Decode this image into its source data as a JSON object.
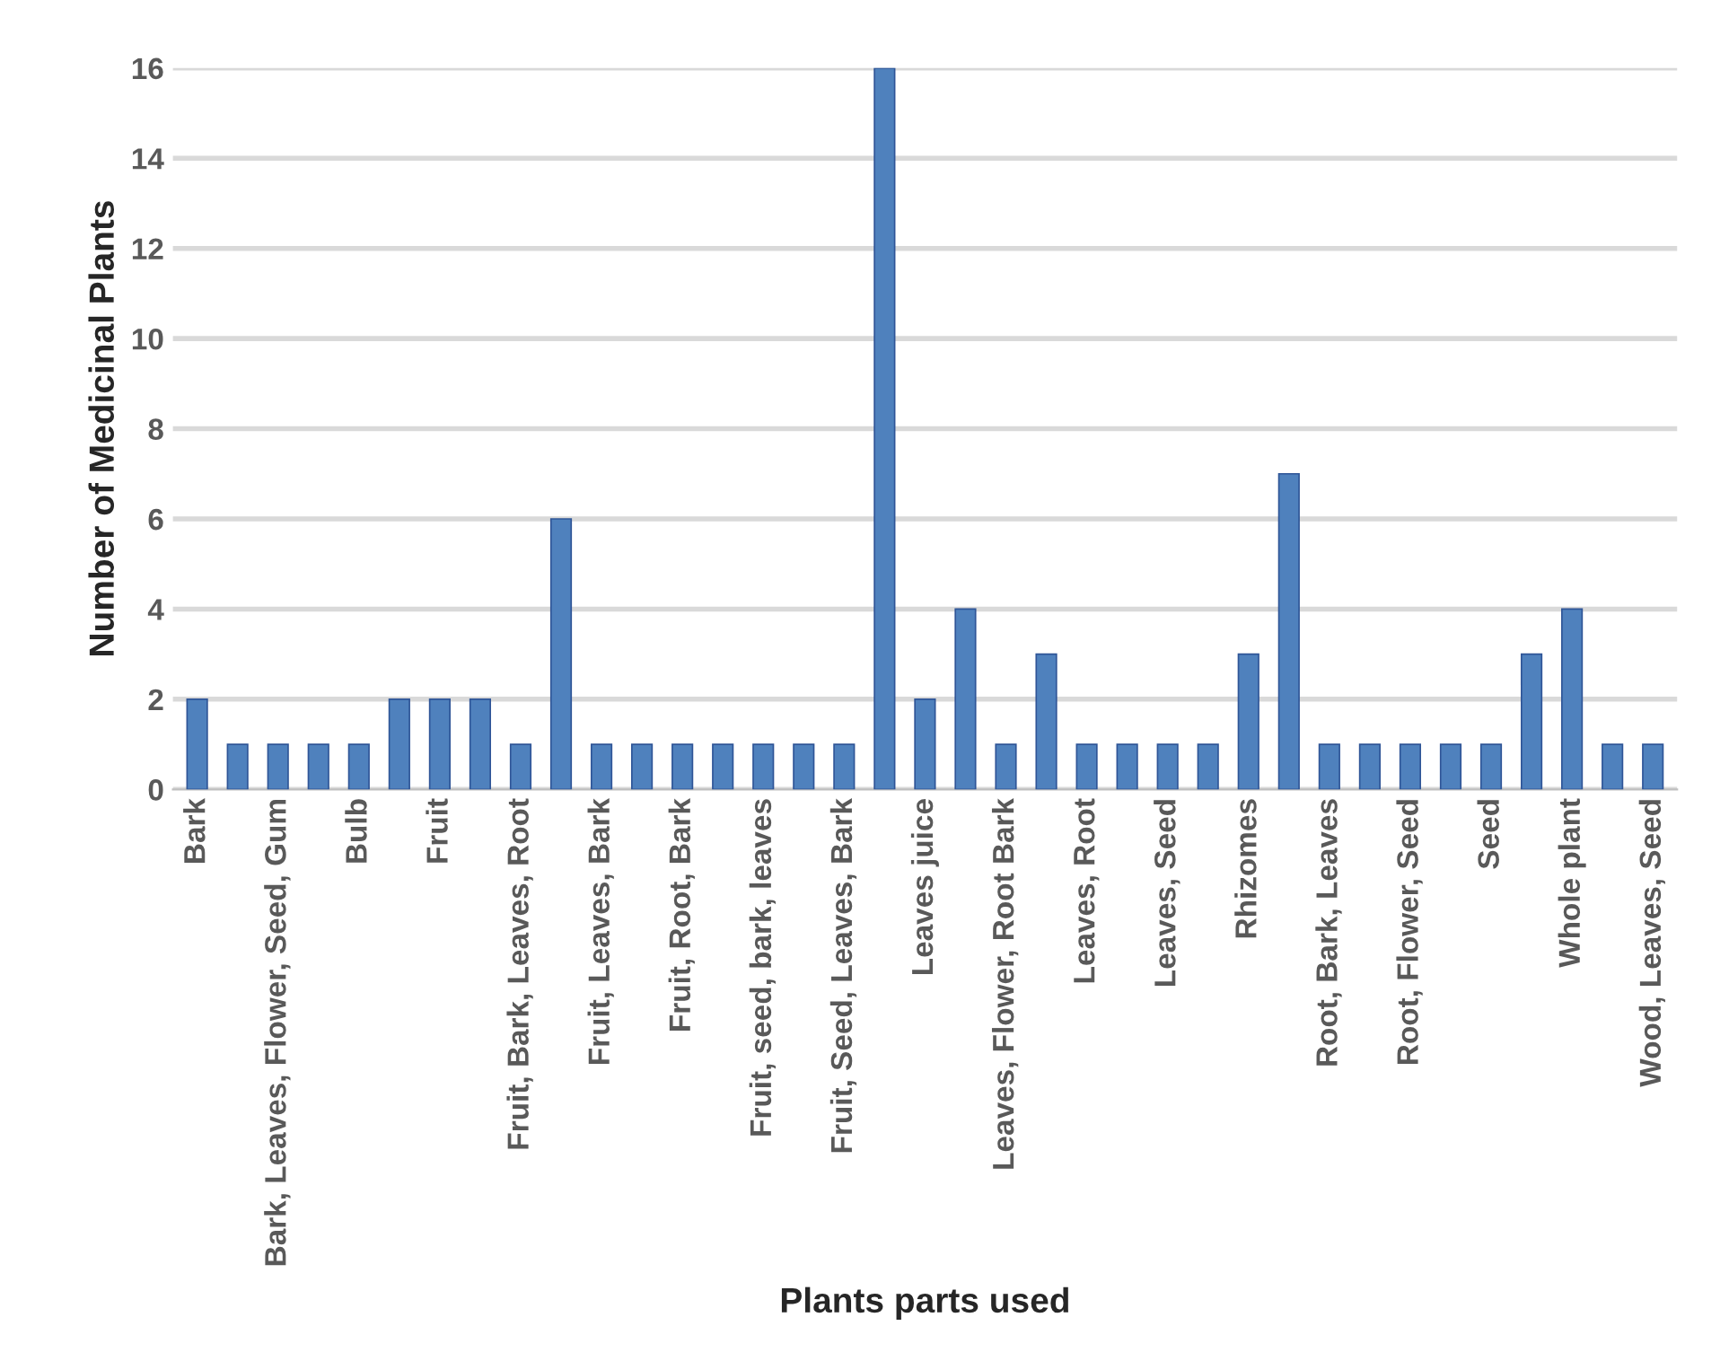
{
  "chart_data": {
    "type": "bar",
    "xlabel": "Plants parts used",
    "ylabel": "Number of Medicinal Plants",
    "categories": [
      "Bark",
      null,
      "Bark, Leaves, Flower, Seed, Gum",
      null,
      "Bulb",
      null,
      "Fruit",
      null,
      "Fruit, Bark, Leaves, Root",
      null,
      "Fruit, Leaves, Bark",
      null,
      "Fruit, Root, Bark",
      null,
      "Fruit, seed, bark, leaves",
      null,
      "Fruit, Seed, Leaves, Bark",
      null,
      "Leaves juice",
      null,
      "Leaves, Flower, Root Bark",
      null,
      "Leaves, Root",
      null,
      "Leaves, Seed",
      null,
      "Rhizomes",
      null,
      "Root, Bark, Leaves",
      null,
      "Root, Flower, Seed",
      null,
      "Seed",
      null,
      "Whole plant",
      null,
      "Wood, Leaves, Seed"
    ],
    "values": [
      2,
      1,
      1,
      1,
      1,
      2,
      2,
      2,
      1,
      6,
      1,
      1,
      1,
      1,
      1,
      1,
      1,
      16,
      2,
      4,
      1,
      3,
      1,
      1,
      1,
      1,
      3,
      7,
      1,
      1,
      1,
      1,
      1,
      3,
      4,
      1,
      1
    ],
    "color": "#4f81bd",
    "ylim": [
      0,
      16
    ],
    "yticks": [
      0,
      2,
      4,
      6,
      8,
      10,
      12,
      14,
      16
    ],
    "grid": "y"
  }
}
